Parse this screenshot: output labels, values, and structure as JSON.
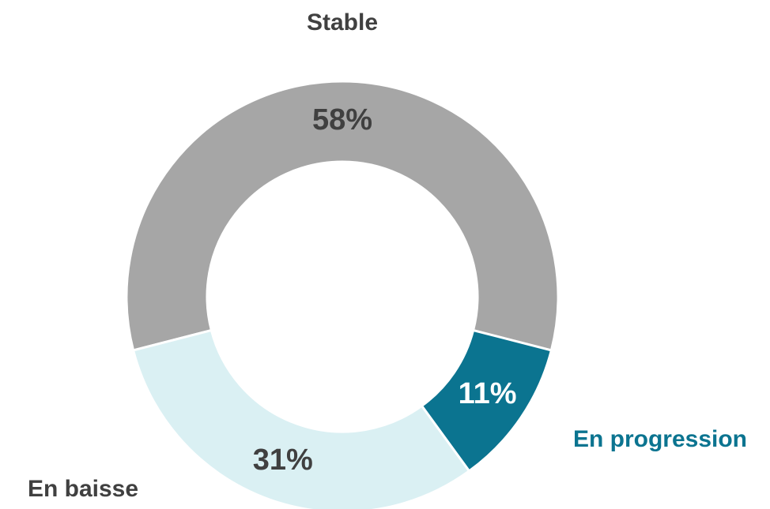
{
  "chart_data": {
    "type": "donut",
    "categories": [
      "Stable",
      "En progression",
      "En baisse"
    ],
    "values": [
      58,
      11,
      31
    ],
    "value_labels": [
      "58%",
      "11%",
      "31%"
    ],
    "colors": [
      "#a6a6a6",
      "#0b7490",
      "#daf0f3"
    ],
    "label_colors": [
      "#404040",
      "#0b7490",
      "#404040"
    ],
    "value_label_colors": [
      "#404040",
      "#ffffff",
      "#404040"
    ]
  }
}
